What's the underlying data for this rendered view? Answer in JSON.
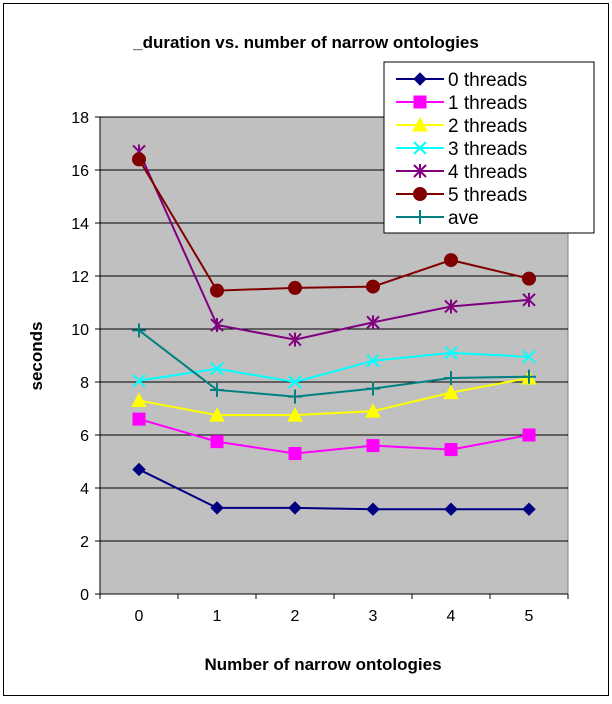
{
  "chart_data": {
    "type": "line",
    "title": "_duration vs. number of narrow ontologies",
    "xlabel": "Number of narrow ontologies",
    "ylabel": "seconds",
    "categories": [
      "0",
      "1",
      "2",
      "3",
      "4",
      "5"
    ],
    "ylim": [
      0,
      18
    ],
    "yticks": [
      "0",
      "2",
      "4",
      "6",
      "8",
      "10",
      "12",
      "14",
      "16",
      "18"
    ],
    "grid": true,
    "legend_position": "top-right",
    "series": [
      {
        "name": "0 threads",
        "color": "#000080",
        "marker": "diamond",
        "values": [
          4.7,
          3.25,
          3.25,
          3.2,
          3.2,
          3.2
        ]
      },
      {
        "name": "1 threads",
        "color": "#FF00FF",
        "marker": "square",
        "values": [
          6.6,
          5.75,
          5.3,
          5.6,
          5.45,
          6.0
        ]
      },
      {
        "name": "2 threads",
        "color": "#FFFF00",
        "marker": "triangle",
        "values": [
          7.3,
          6.75,
          6.75,
          6.9,
          7.6,
          8.15
        ]
      },
      {
        "name": "3 threads",
        "color": "#00FFFF",
        "marker": "x",
        "values": [
          8.05,
          8.5,
          8.0,
          8.8,
          9.1,
          8.95
        ]
      },
      {
        "name": "4 threads",
        "color": "#800080",
        "marker": "star",
        "values": [
          16.7,
          10.15,
          9.6,
          10.25,
          10.85,
          11.1
        ]
      },
      {
        "name": "5 threads",
        "color": "#800000",
        "marker": "circle",
        "values": [
          16.4,
          11.45,
          11.55,
          11.6,
          12.6,
          11.9
        ]
      },
      {
        "name": "ave",
        "color": "#008080",
        "marker": "plus",
        "values": [
          9.95,
          7.7,
          7.45,
          7.75,
          8.15,
          8.2
        ]
      }
    ]
  }
}
